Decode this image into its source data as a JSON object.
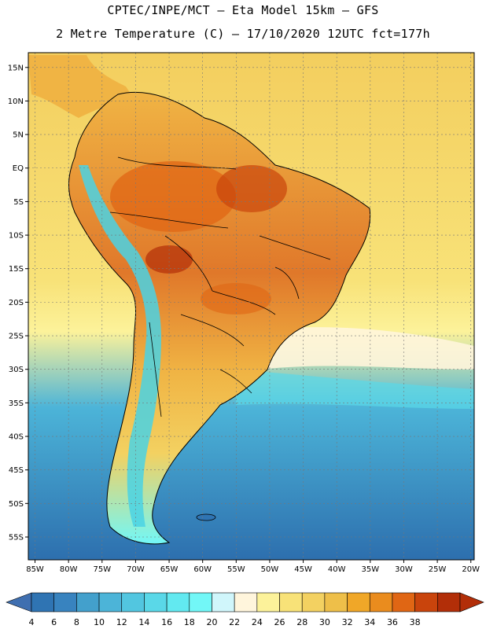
{
  "header": {
    "line1": "CPTEC/INPE/MCT –  Eta Model 15km – GFS",
    "line2": "2 Metre Temperature (C) – 17/10/2020 12UTC fct=177h"
  },
  "axes": {
    "lon_labels": [
      "85W",
      "80W",
      "75W",
      "70W",
      "65W",
      "60W",
      "55W",
      "50W",
      "45W",
      "40W",
      "35W",
      "30W",
      "25W",
      "20W"
    ],
    "lat_labels": [
      "15N",
      "10N",
      "5N",
      "EQ",
      "5S",
      "10S",
      "15S",
      "20S",
      "25S",
      "30S",
      "35S",
      "40S",
      "45S",
      "50S",
      "55S"
    ]
  },
  "colorbar": {
    "levels": [
      "4",
      "6",
      "8",
      "10",
      "12",
      "14",
      "16",
      "18",
      "20",
      "22",
      "24",
      "26",
      "28",
      "30",
      "32",
      "34",
      "36",
      "38"
    ],
    "colors": [
      "#2f74b3",
      "#3883bf",
      "#43a0cc",
      "#4cb4d8",
      "#52c6e0",
      "#5ad8e8",
      "#62e9f0",
      "#72f7f7",
      "#d0f6fb",
      "#fff5dc",
      "#fcf29a",
      "#f8e278",
      "#f3d161",
      "#eebf49",
      "#f0a728",
      "#ea8c1e",
      "#e06614",
      "#c9440c",
      "#b22e08"
    ],
    "low_arrow_color": "#3f6fb0",
    "high_arrow_color": "#b22e08"
  },
  "map": {
    "ocean_north_color": "#f3ce5e",
    "ocean_south_color": "#2d6fae",
    "land_hot_color": "#e0782a",
    "land_warm_color": "#f0b444",
    "andes_color": "#4ad2e4"
  }
}
